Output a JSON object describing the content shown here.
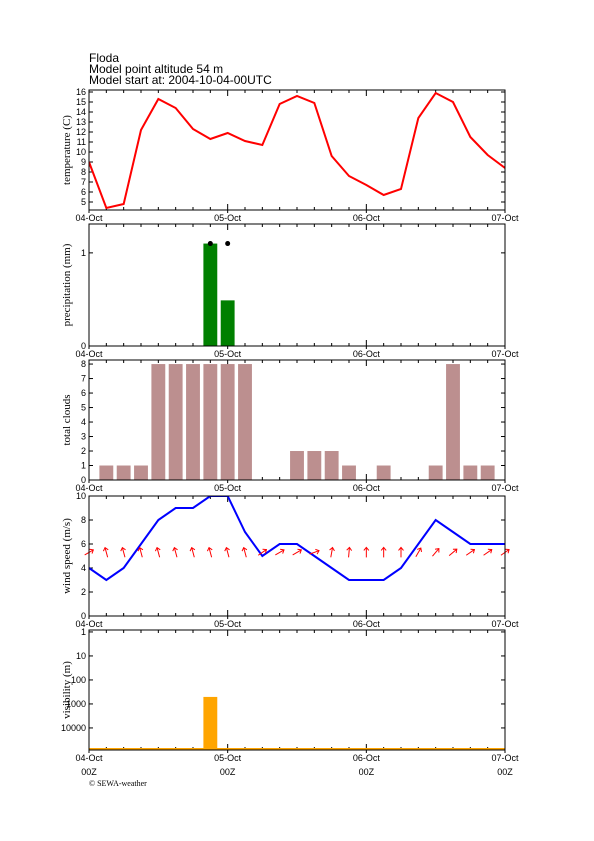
{
  "header": {
    "title": "Floda",
    "altitude": "Model point altitude  54 m",
    "start": "Model start at: 2004-10-04-00UTC"
  },
  "chart_data": [
    {
      "type": "line",
      "ylabel": "temperature (C)",
      "color": "#ff0000",
      "x": [
        0,
        3,
        6,
        9,
        12,
        15,
        18,
        21,
        24,
        27,
        30,
        33,
        36,
        39,
        42,
        45,
        48,
        51,
        54,
        57,
        60,
        63,
        66,
        69,
        72
      ],
      "values": [
        9.0,
        4.4,
        4.8,
        12.2,
        15.3,
        14.4,
        12.3,
        11.3,
        11.9,
        11.1,
        10.7,
        14.8,
        15.6,
        14.9,
        9.6,
        7.6,
        6.7,
        5.7,
        6.3,
        13.4,
        15.9,
        15.0,
        11.5,
        9.7,
        8.4
      ],
      "xlim": [
        0,
        72
      ],
      "ylim": [
        4.2,
        16.2
      ],
      "yticks": [
        5,
        6,
        7,
        8,
        9,
        10,
        11,
        12,
        13,
        14,
        15,
        16
      ],
      "xticks": [
        {
          "value": 0,
          "label": "04-Oct"
        },
        {
          "value": 24,
          "label": "05-Oct"
        },
        {
          "value": 48,
          "label": "06-Oct"
        },
        {
          "value": 72,
          "label": "07-Oct"
        }
      ]
    },
    {
      "type": "bar",
      "ylabel": "precipitation (mm)",
      "color": "#008000",
      "x": [
        21,
        24
      ],
      "values": [
        1.1,
        0.49
      ],
      "points": {
        "x": [
          21,
          24
        ],
        "values": [
          1.1,
          1.1
        ],
        "color": "#000000"
      },
      "xlim": [
        0,
        72
      ],
      "ylim": [
        0,
        1.31
      ],
      "yticks": [
        0,
        1
      ],
      "xticks": [
        {
          "value": 0,
          "label": "04-Oct"
        },
        {
          "value": 24,
          "label": "05-Oct"
        },
        {
          "value": 48,
          "label": "06-Oct"
        },
        {
          "value": 72,
          "label": "07-Oct"
        }
      ]
    },
    {
      "type": "bar",
      "ylabel": "total clouds",
      "color": "#bc8f8f",
      "x": [
        3,
        6,
        9,
        12,
        15,
        18,
        21,
        24,
        27,
        30,
        33,
        36,
        39,
        42,
        45,
        48,
        51,
        54,
        57,
        60,
        63,
        66,
        69
      ],
      "values": [
        1,
        1,
        1,
        8,
        8,
        8,
        8,
        8,
        8,
        0,
        0,
        2,
        2,
        2,
        1,
        0,
        1,
        0,
        0,
        1,
        8,
        1,
        1
      ],
      "xlim": [
        0,
        72
      ],
      "ylim": [
        0,
        8.28
      ],
      "yticks": [
        0,
        1,
        2,
        3,
        4,
        5,
        6,
        7,
        8
      ],
      "xticks": [
        {
          "value": 0,
          "label": "04-Oct"
        },
        {
          "value": 24,
          "label": "05-Oct"
        },
        {
          "value": 48,
          "label": "06-Oct"
        },
        {
          "value": 72,
          "label": "07-Oct"
        }
      ]
    },
    {
      "type": "line",
      "ylabel": "wind speed (m/s)",
      "color": "#0000ff",
      "x": [
        0,
        3,
        6,
        9,
        12,
        15,
        18,
        21,
        24,
        27,
        30,
        33,
        36,
        39,
        42,
        45,
        48,
        51,
        54,
        57,
        60,
        63,
        66,
        69,
        72
      ],
      "values": [
        4,
        3,
        4,
        6,
        8,
        9,
        9,
        10,
        10,
        7,
        5,
        6,
        6,
        5,
        4,
        3,
        3,
        3,
        4,
        6,
        8,
        7,
        6,
        6,
        6
      ],
      "arrows": {
        "color": "#ff0000",
        "y": 5.3,
        "directions": [
          60,
          345,
          345,
          345,
          345,
          345,
          345,
          345,
          345,
          345,
          55,
          60,
          60,
          70,
          10,
          5,
          0,
          0,
          0,
          30,
          40,
          50,
          55,
          55,
          55
        ]
      },
      "xlim": [
        0,
        72
      ],
      "ylim": [
        0,
        10
      ],
      "yticks": [
        0,
        2,
        4,
        6,
        8,
        10
      ],
      "xticks": [
        {
          "value": 0,
          "label": "04-Oct"
        },
        {
          "value": 24,
          "label": "05-Oct"
        },
        {
          "value": 48,
          "label": "06-Oct"
        },
        {
          "value": 72,
          "label": "07-Oct"
        }
      ]
    },
    {
      "type": "bar",
      "ylabel": "visibility (m)",
      "color": "#ffa500",
      "log": true,
      "inverted": true,
      "x": [
        21
      ],
      "values": [
        510
      ],
      "xlim": [
        0,
        72
      ],
      "ylim": [
        0.83,
        83000
      ],
      "yticks": [
        1,
        10,
        100,
        1000,
        10000
      ],
      "xticks": [
        {
          "value": 0,
          "label": "04-Oct"
        },
        {
          "value": 24,
          "label": "05-Oct"
        },
        {
          "value": 48,
          "label": "06-Oct"
        },
        {
          "value": 72,
          "label": "07-Oct"
        }
      ],
      "hour_labels": [
        "00Z",
        "00Z",
        "00Z",
        "00Z"
      ]
    }
  ],
  "footer": "© SEWA-weather"
}
